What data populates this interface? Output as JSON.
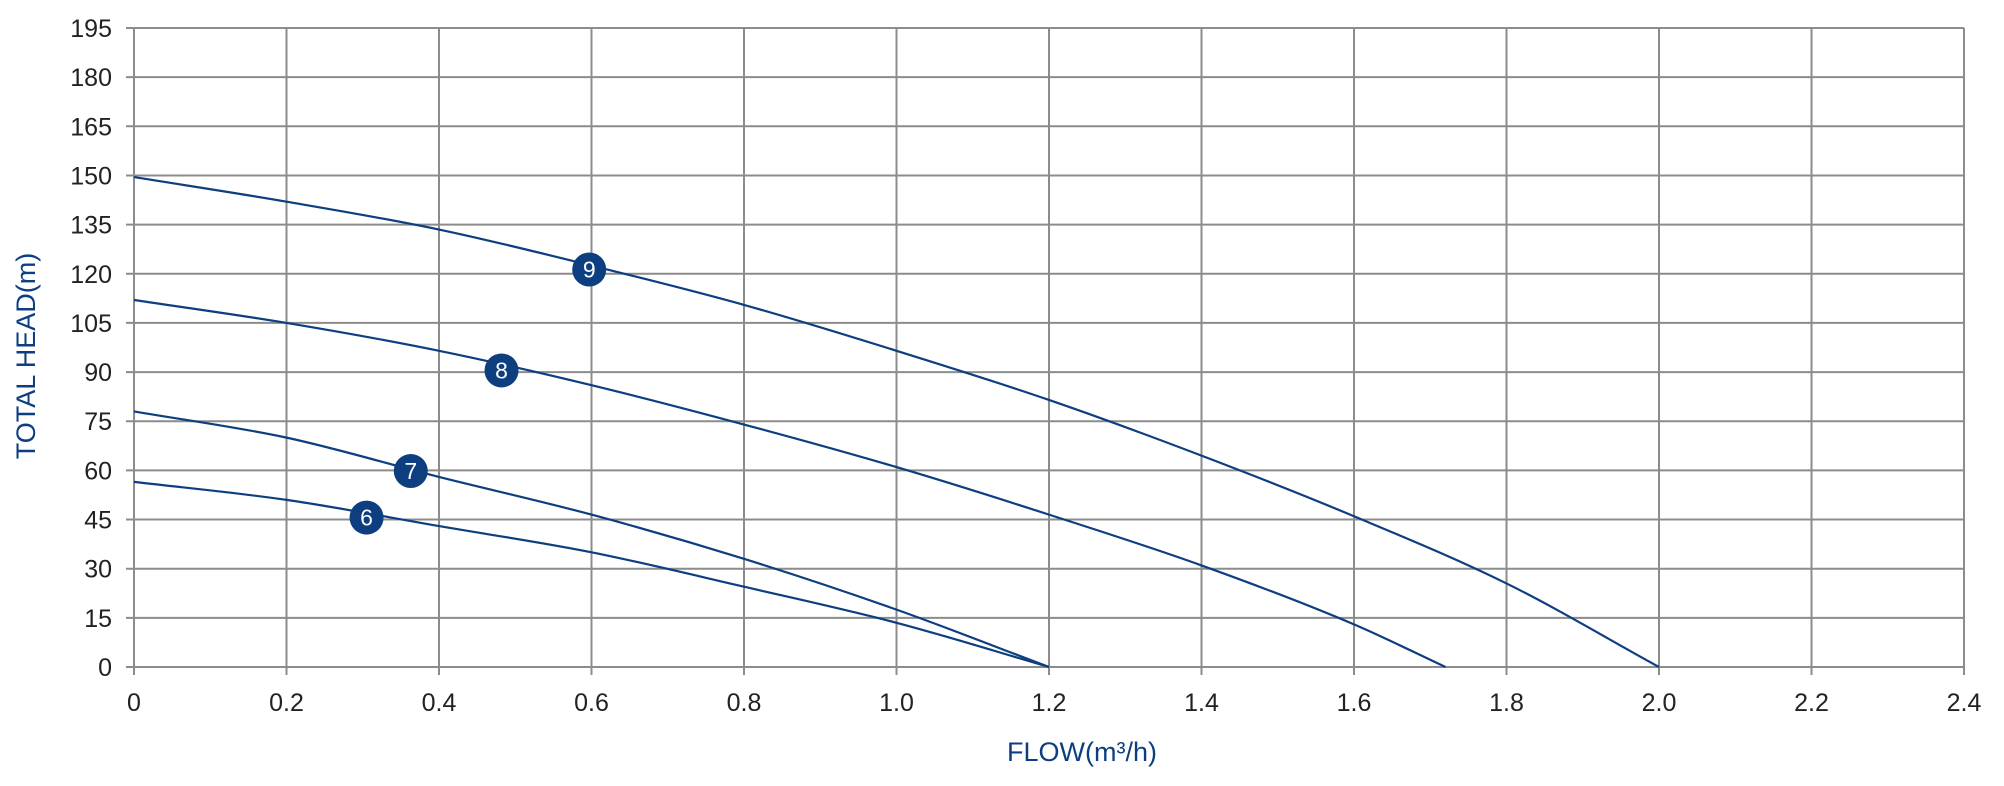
{
  "colors": {
    "accent": "#0d3f80",
    "grid": "#8c8c8c",
    "tick_text": "#222222"
  },
  "chart_data": {
    "type": "line",
    "xlabel": "FLOW(m³/h)",
    "ylabel": "TOTAL HEAD(m)",
    "xlim": [
      0,
      2.4
    ],
    "ylim": [
      0,
      195
    ],
    "x_ticks": [
      "0",
      "0.2",
      "0.4",
      "0.6",
      "0.8",
      "1.0",
      "1.2",
      "1.4",
      "1.6",
      "1.8",
      "2.0",
      "2.2",
      "2.4"
    ],
    "y_ticks": [
      "0",
      "15",
      "30",
      "45",
      "60",
      "75",
      "90",
      "105",
      "120",
      "135",
      "150",
      "165",
      "180",
      "195"
    ],
    "grid": true,
    "legend": "none",
    "series": [
      {
        "name": "6",
        "x": [
          0,
          0.2,
          0.4,
          0.6,
          0.8,
          1.0,
          1.2
        ],
        "y": [
          56.5,
          51,
          43,
          35,
          24.5,
          13.5,
          0
        ],
        "label_at": [
          0.305,
          45.6
        ]
      },
      {
        "name": "7",
        "x": [
          0,
          0.2,
          0.4,
          0.6,
          0.8,
          1.0,
          1.2
        ],
        "y": [
          78,
          70,
          58,
          46.5,
          33,
          17.5,
          0
        ],
        "label_at": [
          0.363,
          59.8
        ]
      },
      {
        "name": "8",
        "x": [
          0,
          0.2,
          0.4,
          0.6,
          0.8,
          1.0,
          1.2,
          1.4,
          1.6,
          1.72
        ],
        "y": [
          112,
          105,
          96.5,
          86,
          74,
          61,
          46.5,
          31,
          13,
          0
        ],
        "label_at": [
          0.482,
          90.5
        ]
      },
      {
        "name": "9",
        "x": [
          0,
          0.2,
          0.4,
          0.6,
          0.8,
          1.0,
          1.2,
          1.4,
          1.6,
          1.8,
          2.0
        ],
        "y": [
          149.5,
          142,
          133.5,
          122.5,
          110.5,
          96.5,
          81.5,
          64.5,
          46,
          25.5,
          0
        ],
        "label_at": [
          0.597,
          121.3
        ]
      }
    ]
  }
}
